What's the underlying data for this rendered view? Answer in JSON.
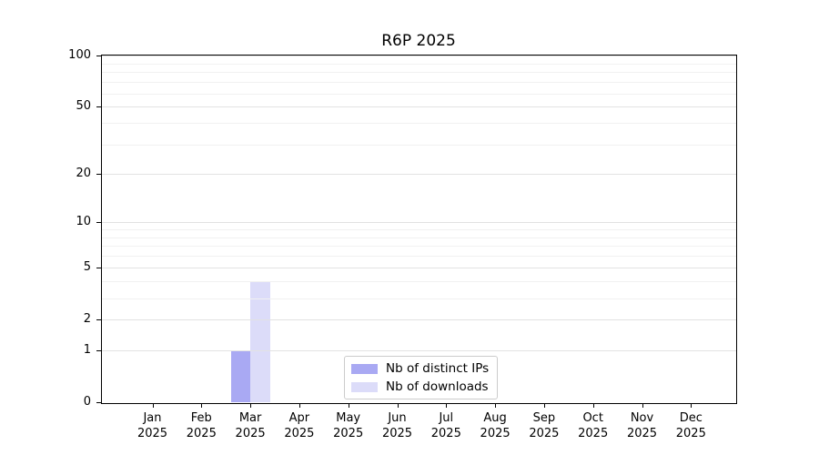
{
  "title": "R6P 2025",
  "chart_data": {
    "type": "bar",
    "title": "R6P 2025",
    "categories": [
      "Jan",
      "Feb",
      "Mar",
      "Apr",
      "May",
      "Jun",
      "Jul",
      "Aug",
      "Sep",
      "Oct",
      "Nov",
      "Dec"
    ],
    "x_year_label": "2025",
    "series": [
      {
        "name": "Nb of distinct IPs",
        "color": "#a9a9f3",
        "values": [
          0,
          0,
          1,
          0,
          0,
          0,
          0,
          0,
          0,
          0,
          0,
          0
        ]
      },
      {
        "name": "Nb of downloads",
        "color": "#dcdcf9",
        "values": [
          0,
          0,
          4,
          0,
          0,
          0,
          0,
          0,
          0,
          0,
          0,
          0
        ]
      }
    ],
    "y_scale": "log1p",
    "ylim": [
      0,
      100
    ],
    "y_ticks": [
      "0",
      "1",
      "2",
      "5",
      "10",
      "20",
      "50",
      "100"
    ],
    "y_tick_values": [
      0,
      1,
      2,
      5,
      10,
      20,
      50,
      100
    ],
    "y_major_gridlines": [
      1,
      2,
      5,
      10,
      20,
      50,
      100
    ],
    "y_minor_gridlines": [
      3,
      4,
      6,
      7,
      8,
      9,
      30,
      40,
      60,
      70,
      80,
      90
    ],
    "grid": true,
    "legend_position": "lower-center-inside",
    "colors": {
      "axis": "#000000",
      "grid_major": "#e2e2e2",
      "grid_minor": "#f1f1f1",
      "background": "#ffffff"
    }
  }
}
